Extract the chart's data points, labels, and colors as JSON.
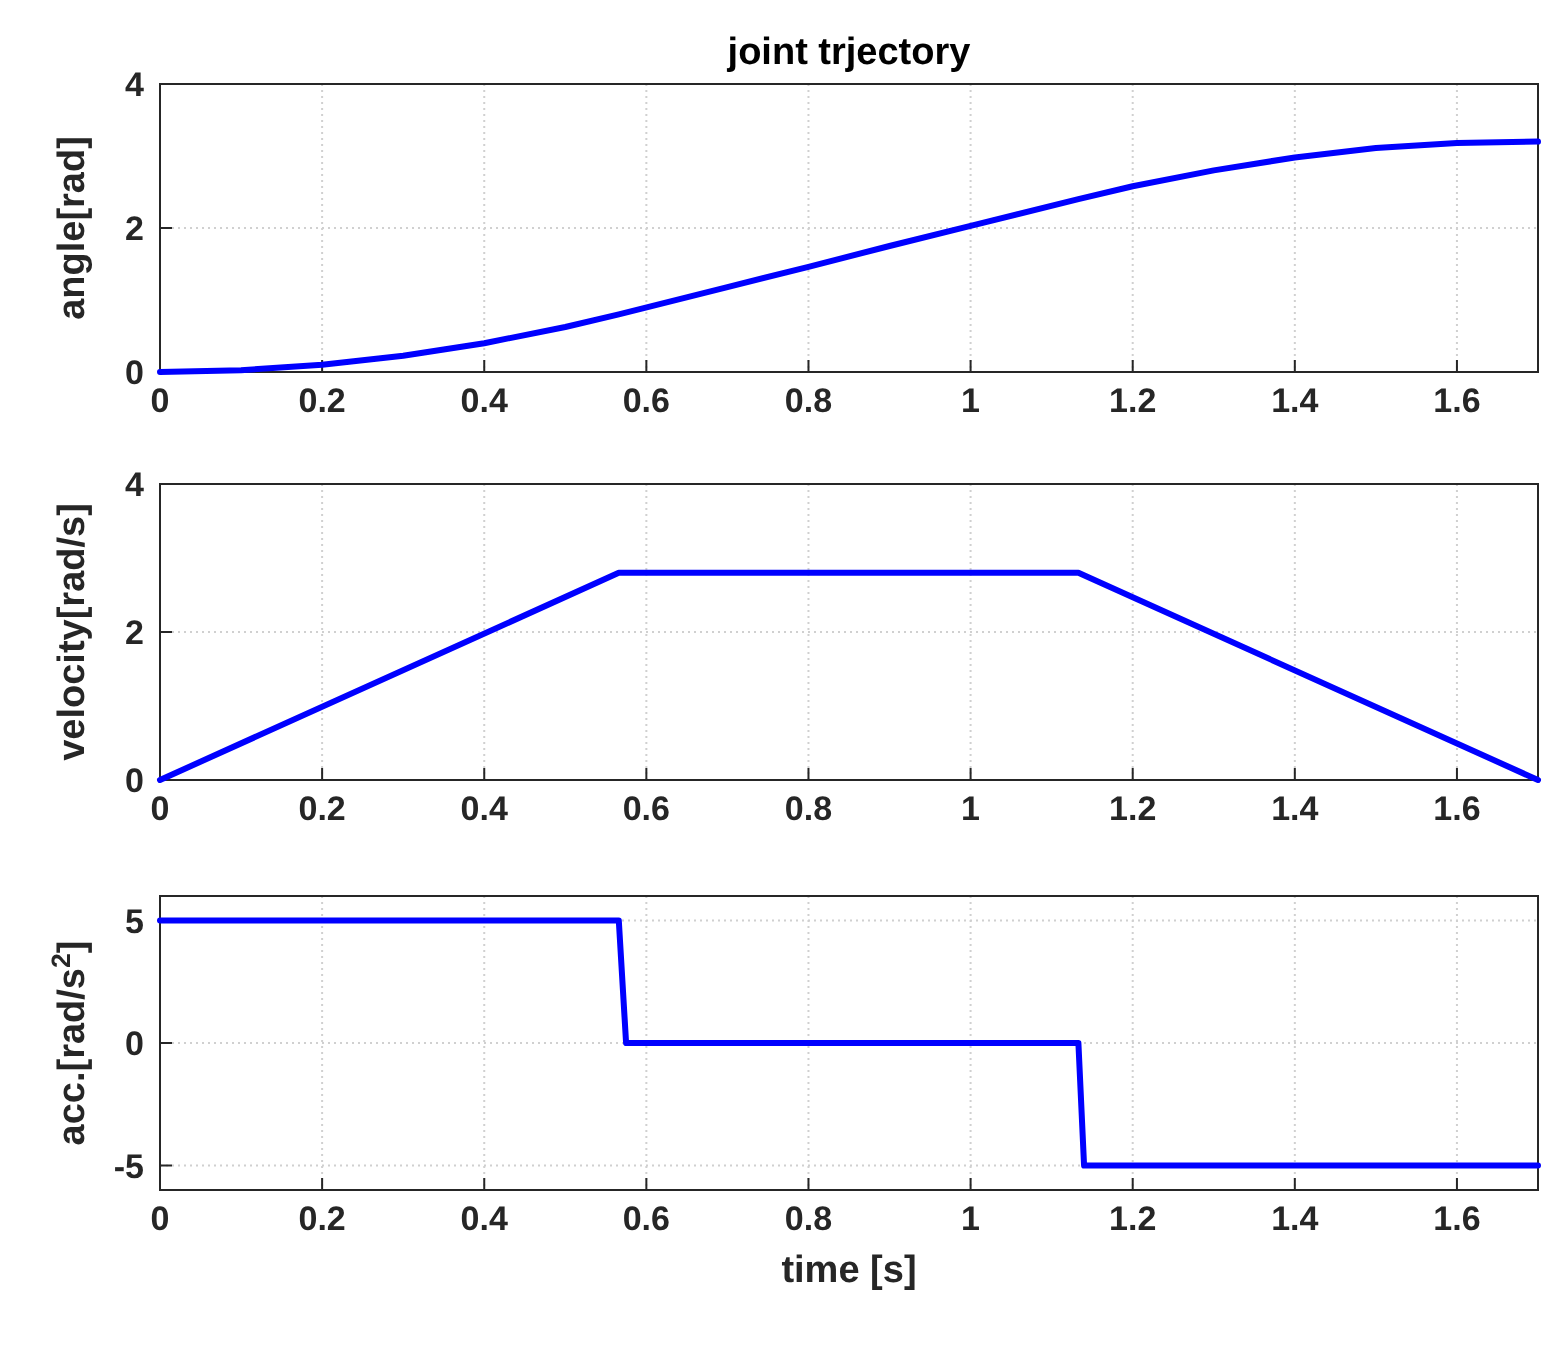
{
  "chart_data": [
    {
      "type": "line",
      "title": "joint trjectory",
      "ylabel": "angle[rad]",
      "xlim": [
        0,
        1.7
      ],
      "xticks": [
        0,
        0.2,
        0.4,
        0.6,
        0.8,
        1,
        1.2,
        1.4,
        1.6
      ],
      "ylim": [
        0,
        4
      ],
      "yticks": [
        0,
        2,
        4
      ],
      "grid": true,
      "series": [
        {
          "color": "#0000ff",
          "x": [
            0,
            0.1,
            0.2,
            0.3,
            0.4,
            0.5,
            0.566,
            0.7,
            0.8,
            0.9,
            1.0,
            1.133,
            1.2,
            1.3,
            1.4,
            1.5,
            1.6,
            1.7
          ],
          "values": [
            0,
            0.025,
            0.1,
            0.225,
            0.4,
            0.625,
            0.8,
            1.18,
            1.46,
            1.75,
            2.03,
            2.4,
            2.58,
            2.8,
            2.98,
            3.11,
            3.18,
            3.2
          ]
        }
      ]
    },
    {
      "type": "line",
      "ylabel": "velocity[rad/s]",
      "xlim": [
        0,
        1.7
      ],
      "xticks": [
        0,
        0.2,
        0.4,
        0.6,
        0.8,
        1,
        1.2,
        1.4,
        1.6
      ],
      "ylim": [
        0,
        4
      ],
      "yticks": [
        0,
        2,
        4
      ],
      "grid": true,
      "series": [
        {
          "color": "#0000ff",
          "x": [
            0,
            0.566,
            1.133,
            1.7
          ],
          "values": [
            0,
            2.8,
            2.8,
            0
          ]
        }
      ]
    },
    {
      "type": "line",
      "ylabel": "acc.[rad/s$^{2}$]",
      "xlabel": "time [s]",
      "xlim": [
        0,
        1.7
      ],
      "xticks": [
        0,
        0.2,
        0.4,
        0.6,
        0.8,
        1,
        1.2,
        1.4,
        1.6
      ],
      "ylim": [
        -6,
        6
      ],
      "yticks": [
        -5,
        0,
        5
      ],
      "grid": true,
      "series": [
        {
          "color": "#0000ff",
          "x": [
            0,
            0.566,
            0.575,
            1.133,
            1.14,
            1.7
          ],
          "values": [
            5,
            5,
            0,
            0,
            -5,
            -5
          ]
        }
      ]
    }
  ]
}
